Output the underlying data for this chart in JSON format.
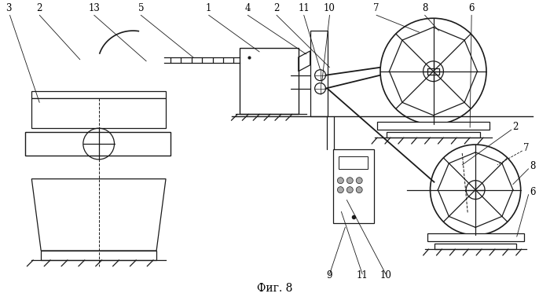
{
  "title": "Фиг. 8",
  "bg_color": "#ffffff",
  "line_color": "#1a1a1a",
  "fig_width": 7.0,
  "fig_height": 3.78,
  "dpi": 100
}
